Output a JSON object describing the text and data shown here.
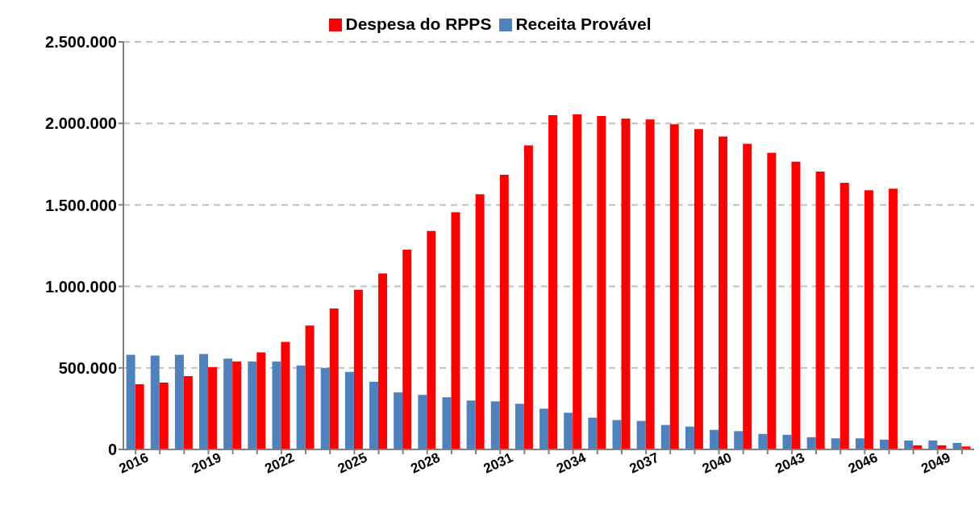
{
  "chart_data": {
    "type": "bar",
    "categories": [
      "2016",
      null,
      null,
      "2019",
      null,
      null,
      "2022",
      null,
      null,
      "2025",
      null,
      null,
      "2028",
      null,
      null,
      "2031",
      null,
      null,
      "2034",
      null,
      null,
      "2037",
      null,
      null,
      "2040",
      null,
      null,
      "2043",
      null,
      null,
      "2046",
      null,
      null,
      "2049",
      null
    ],
    "series": [
      {
        "name": "Receita Provável",
        "color": "#4f81bd",
        "values": [
          580000,
          575000,
          580000,
          585000,
          557000,
          540000,
          540000,
          515000,
          500000,
          475000,
          415000,
          350000,
          335000,
          320000,
          300000,
          295000,
          280000,
          250000,
          225000,
          195000,
          180000,
          175000,
          150000,
          140000,
          120000,
          112000,
          95000,
          90000,
          75000,
          68000,
          68000,
          60000,
          55000,
          55000,
          40000
        ]
      },
      {
        "name": "Despesa do RPPS",
        "color": "#ff0000",
        "values": [
          400000,
          410000,
          450000,
          505000,
          540000,
          595000,
          660000,
          760000,
          865000,
          980000,
          1080000,
          1225000,
          1340000,
          1455000,
          1565000,
          1685000,
          1865000,
          2050000,
          2055000,
          2045000,
          2030000,
          2025000,
          1995000,
          1965000,
          1920000,
          1875000,
          1820000,
          1765000,
          1705000,
          1635000,
          1590000,
          1600000,
          25000,
          25000,
          18000
        ]
      }
    ],
    "ylim": [
      0,
      2500000
    ],
    "yticks": [
      0,
      {
        "value": 500000,
        "label": "500.000"
      },
      {
        "value": 1000000,
        "label": "1.000.000"
      },
      {
        "value": 1500000,
        "label": "1.500.000"
      },
      {
        "value": 2000000,
        "label": "2.000.000"
      },
      {
        "value": 2500000,
        "label": "2.500.000"
      }
    ],
    "grid": "y",
    "legend": "top"
  }
}
